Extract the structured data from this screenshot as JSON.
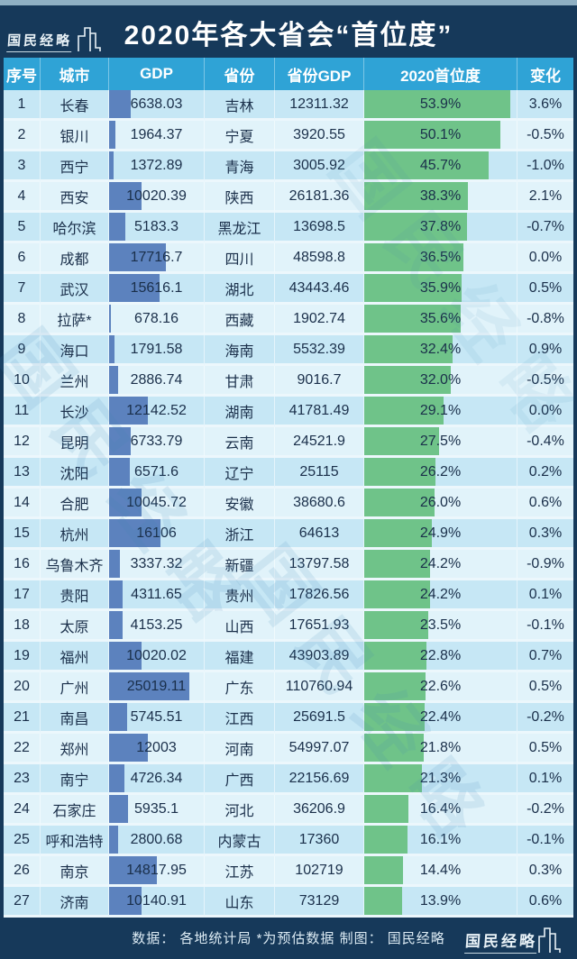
{
  "banner": {
    "logo_text": "国民经略",
    "title": "2020年各大省会“首位度”"
  },
  "watermark_text": "国民经略",
  "footer": {
    "note": "数据：  各地统计局 *为预估数据   制图：  国民经略",
    "logo_text": "国民经略"
  },
  "colors": {
    "banner_bg": "#16395a",
    "header_bg": "#2fa3d6",
    "row_odd": "#c6e7f5",
    "row_even": "#e1f3fa",
    "gdp_bar": "#5c82be",
    "primacy_bar": "#6fc389",
    "top_strip": "#8fb0c3",
    "text": "#1a2f4a"
  },
  "chart_data": {
    "type": "table",
    "title": "2020年各大省会“首位度”",
    "columns": [
      "序号",
      "城市",
      "GDP",
      "省份",
      "省份GDP",
      "2020首位度",
      "变化"
    ],
    "embedded_bars": [
      {
        "column": "GDP",
        "type": "bar",
        "color": "#5c82be",
        "scale_max": 25019.11
      },
      {
        "column": "2020首位度",
        "type": "bar",
        "color": "#6fc389",
        "scale_max": 53.9
      }
    ],
    "gdp_bar_max": 25019.11,
    "primacy_bar_max": 53.9,
    "rows": [
      [
        "1",
        "长春",
        "6638.03",
        "吉林",
        "12311.32",
        "53.9%",
        "3.6%"
      ],
      [
        "2",
        "银川",
        "1964.37",
        "宁夏",
        "3920.55",
        "50.1%",
        "-0.5%"
      ],
      [
        "3",
        "西宁",
        "1372.89",
        "青海",
        "3005.92",
        "45.7%",
        "-1.0%"
      ],
      [
        "4",
        "西安",
        "10020.39",
        "陕西",
        "26181.36",
        "38.3%",
        "2.1%"
      ],
      [
        "5",
        "哈尔滨",
        "5183.3",
        "黑龙江",
        "13698.5",
        "37.8%",
        "-0.7%"
      ],
      [
        "6",
        "成都",
        "17716.7",
        "四川",
        "48598.8",
        "36.5%",
        "0.0%"
      ],
      [
        "7",
        "武汉",
        "15616.1",
        "湖北",
        "43443.46",
        "35.9%",
        "0.5%"
      ],
      [
        "8",
        "拉萨*",
        "678.16",
        "西藏",
        "1902.74",
        "35.6%",
        "-0.8%"
      ],
      [
        "9",
        "海口",
        "1791.58",
        "海南",
        "5532.39",
        "32.4%",
        "0.9%"
      ],
      [
        "10",
        "兰州",
        "2886.74",
        "甘肃",
        "9016.7",
        "32.0%",
        "-0.5%"
      ],
      [
        "11",
        "长沙",
        "12142.52",
        "湖南",
        "41781.49",
        "29.1%",
        "0.0%"
      ],
      [
        "12",
        "昆明",
        "6733.79",
        "云南",
        "24521.9",
        "27.5%",
        "-0.4%"
      ],
      [
        "13",
        "沈阳",
        "6571.6",
        "辽宁",
        "25115",
        "26.2%",
        "0.2%"
      ],
      [
        "14",
        "合肥",
        "10045.72",
        "安徽",
        "38680.6",
        "26.0%",
        "0.6%"
      ],
      [
        "15",
        "杭州",
        "16106",
        "浙江",
        "64613",
        "24.9%",
        "0.3%"
      ],
      [
        "16",
        "乌鲁木齐",
        "3337.32",
        "新疆",
        "13797.58",
        "24.2%",
        "-0.9%"
      ],
      [
        "17",
        "贵阳",
        "4311.65",
        "贵州",
        "17826.56",
        "24.2%",
        "0.1%"
      ],
      [
        "18",
        "太原",
        "4153.25",
        "山西",
        "17651.93",
        "23.5%",
        "-0.1%"
      ],
      [
        "19",
        "福州",
        "10020.02",
        "福建",
        "43903.89",
        "22.8%",
        "0.7%"
      ],
      [
        "20",
        "广州",
        "25019.11",
        "广东",
        "110760.94",
        "22.6%",
        "0.5%"
      ],
      [
        "21",
        "南昌",
        "5745.51",
        "江西",
        "25691.5",
        "22.4%",
        "-0.2%"
      ],
      [
        "22",
        "郑州",
        "12003",
        "河南",
        "54997.07",
        "21.8%",
        "0.5%"
      ],
      [
        "23",
        "南宁",
        "4726.34",
        "广西",
        "22156.69",
        "21.3%",
        "0.1%"
      ],
      [
        "24",
        "石家庄",
        "5935.1",
        "河北",
        "36206.9",
        "16.4%",
        "-0.2%"
      ],
      [
        "25",
        "呼和浩特",
        "2800.68",
        "内蒙古",
        "17360",
        "16.1%",
        "-0.1%"
      ],
      [
        "26",
        "南京",
        "14817.95",
        "江苏",
        "102719",
        "14.4%",
        "0.3%"
      ],
      [
        "27",
        "济南",
        "10140.91",
        "山东",
        "73129",
        "13.9%",
        "0.6%"
      ]
    ]
  }
}
